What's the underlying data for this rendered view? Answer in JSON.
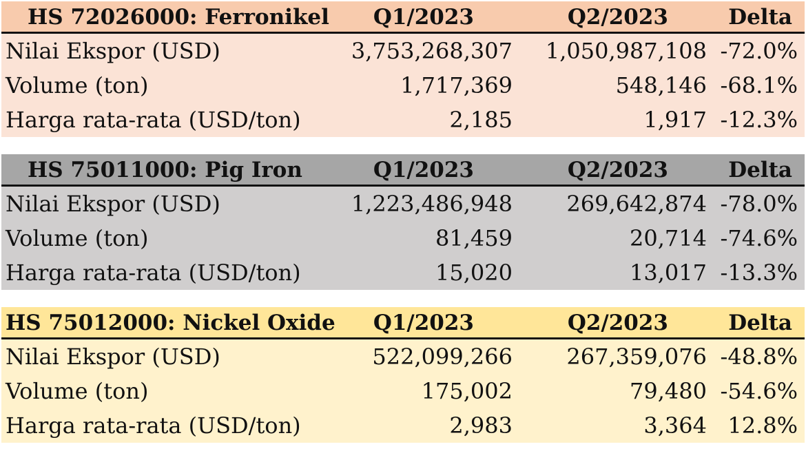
{
  "tables": [
    {
      "header": {
        "title": "HS 72026000: Ferronikel",
        "q1": "Q1/2023",
        "q2": "Q2/2023",
        "delta": "Delta"
      },
      "header_bg": "#f8cbad",
      "body_bg": "#fbe3d6",
      "rows": [
        {
          "label": "Nilai Ekspor (USD)",
          "q1": "3,753,268,307",
          "q2": "1,050,987,108",
          "delta": "-72.0%"
        },
        {
          "label": "Volume (ton)",
          "q1": "1,717,369",
          "q2": "548,146",
          "delta": "-68.1%"
        },
        {
          "label": "Harga rata-rata (USD/ton)",
          "q1": "2,185",
          "q2": "1,917",
          "delta": "-12.3%"
        }
      ]
    },
    {
      "header": {
        "title": "HS 75011000: Pig Iron",
        "q1": "Q1/2023",
        "q2": "Q2/2023",
        "delta": "Delta"
      },
      "header_bg": "#a6a6a6",
      "body_bg": "#d0cece",
      "rows": [
        {
          "label": "Nilai Ekspor (USD)",
          "q1": "1,223,486,948",
          "q2": "269,642,874",
          "delta": "-78.0%"
        },
        {
          "label": "Volume (ton)",
          "q1": "81,459",
          "q2": "20,714",
          "delta": "-74.6%"
        },
        {
          "label": "Harga rata-rata (USD/ton)",
          "q1": "15,020",
          "q2": "13,017",
          "delta": "-13.3%"
        }
      ]
    },
    {
      "header": {
        "title": "HS 75012000: Nickel Oxide",
        "q1": "Q1/2023",
        "q2": "Q2/2023",
        "delta": "Delta"
      },
      "header_bg": "#ffe699",
      "body_bg": "#fff2cc",
      "rows": [
        {
          "label": "Nilai Ekspor (USD)",
          "q1": "522,099,266",
          "q2": "267,359,076",
          "delta": "-48.8%"
        },
        {
          "label": "Volume (ton)",
          "q1": "175,002",
          "q2": "79,480",
          "delta": "-54.6%"
        },
        {
          "label": "Harga rata-rata (USD/ton)",
          "q1": "2,983",
          "q2": "3,364",
          "delta": "12.8%"
        }
      ]
    }
  ]
}
